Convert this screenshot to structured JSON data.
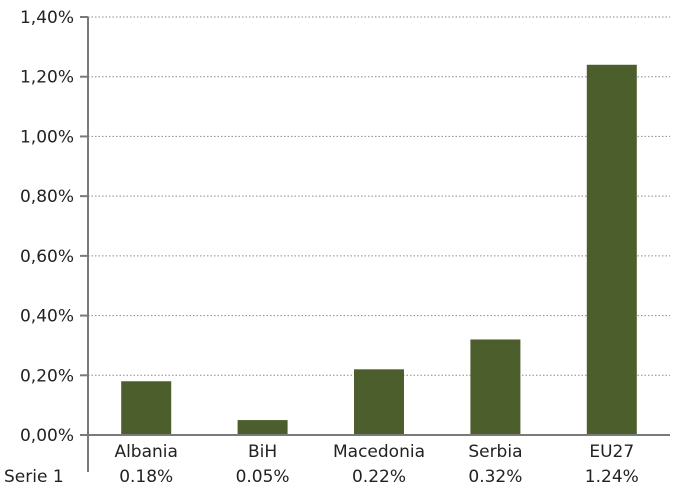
{
  "chart_data": {
    "type": "bar",
    "categories": [
      "Albania",
      "BiH",
      "Macedonia",
      "Serbia",
      "EU27"
    ],
    "series": [
      {
        "name": "Serie 1",
        "values": [
          0.18,
          0.05,
          0.22,
          0.32,
          1.24
        ],
        "value_labels": [
          "0.18%",
          "0.05%",
          "0.22%",
          "0.32%",
          "1.24%"
        ],
        "color": "#4b5e2c"
      }
    ],
    "y_ticks": [
      0,
      0.2,
      0.4,
      0.6,
      0.8,
      1.0,
      1.2,
      1.4
    ],
    "y_tick_labels": [
      "0,00%",
      "0,20%",
      "0,40%",
      "0,60%",
      "0,80%",
      "1,00%",
      "1,20%",
      "1,40%"
    ],
    "ylim": [
      0,
      1.4
    ],
    "grid": true,
    "legend": "data-table-below",
    "title": "",
    "xlabel": "",
    "ylabel": ""
  }
}
